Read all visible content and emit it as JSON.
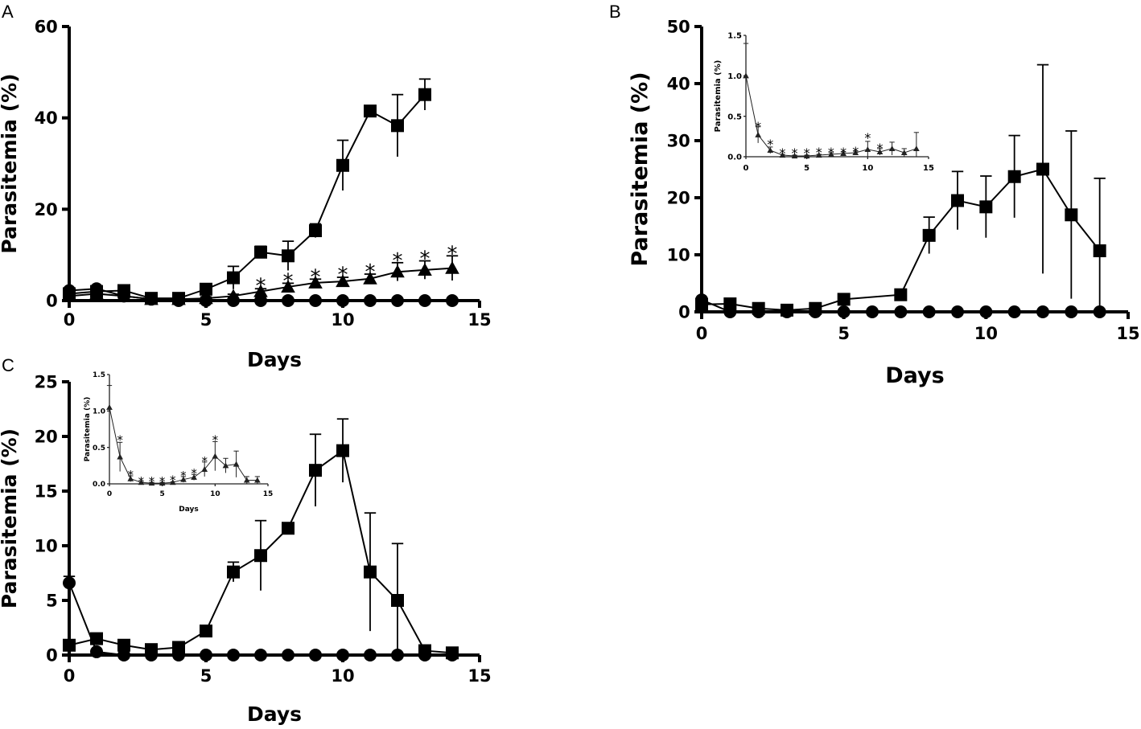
{
  "colors": {
    "ink": "#000000",
    "inset_ink": "#222222",
    "background": "#ffffff"
  },
  "panel_letters": {
    "a": "A",
    "b": "B",
    "c": "C"
  },
  "chart_data": [
    {
      "id": "A",
      "type": "line",
      "title": "",
      "xlabel": "Days",
      "ylabel": "Parasitemia (%)",
      "xlim": [
        0,
        15
      ],
      "ylim": [
        0,
        60
      ],
      "xticks": [
        "0",
        "5",
        "10",
        "15"
      ],
      "yticks": [
        "0",
        "20",
        "40",
        "60"
      ],
      "series": [
        {
          "name": "square",
          "marker": "square",
          "x": [
            0,
            1,
            2,
            3,
            4,
            5,
            6,
            7,
            8,
            9,
            10,
            11,
            12,
            13
          ],
          "y": [
            1.5,
            2.0,
            2.2,
            0.5,
            0.5,
            2.5,
            5.0,
            10.6,
            9.8,
            15.3,
            29.6,
            41.5,
            38.3,
            45.1
          ],
          "err": [
            0.5,
            0.6,
            0.7,
            0.3,
            0.3,
            1.2,
            2.5,
            1.3,
            3.2,
            1.5,
            5.5,
            1.2,
            6.8,
            3.4
          ]
        },
        {
          "name": "triangle",
          "marker": "triangle",
          "x": [
            0,
            1,
            2,
            3,
            4,
            5,
            6,
            7,
            8,
            9,
            10,
            11,
            12,
            13,
            14
          ],
          "y": [
            1.0,
            1.5,
            1.0,
            0.3,
            0.3,
            0.5,
            1.0,
            2.0,
            3.0,
            3.9,
            4.2,
            4.8,
            6.3,
            6.7,
            7.1
          ],
          "err": [
            0.3,
            0.4,
            0.3,
            0.2,
            0.2,
            0.3,
            0.4,
            0.6,
            0.8,
            0.8,
            0.9,
            1.0,
            2.0,
            2.0,
            2.7
          ]
        },
        {
          "name": "circle",
          "marker": "circle",
          "x": [
            0,
            1,
            2,
            3,
            4,
            5,
            6,
            7,
            8,
            9,
            10,
            11,
            12,
            13,
            14
          ],
          "y": [
            2.2,
            2.6,
            1.0,
            0.3,
            0,
            0,
            0,
            0,
            0,
            0,
            0,
            0,
            0,
            0,
            0
          ],
          "err": [
            0,
            0,
            0,
            0,
            0,
            0,
            0,
            0,
            0,
            0,
            0,
            0,
            0,
            0,
            0
          ]
        }
      ],
      "annotations": [
        {
          "text": "*",
          "x": 7,
          "y": 3.7
        },
        {
          "text": "*",
          "x": 8,
          "y": 4.8
        },
        {
          "text": "*",
          "x": 9,
          "y": 5.7
        },
        {
          "text": "*",
          "x": 10,
          "y": 6.2
        },
        {
          "text": "*",
          "x": 11,
          "y": 6.8
        },
        {
          "text": "*",
          "x": 12,
          "y": 9.3
        },
        {
          "text": "*",
          "x": 13,
          "y": 9.7
        },
        {
          "text": "*",
          "x": 14,
          "y": 10.8
        }
      ],
      "inset": null
    },
    {
      "id": "B",
      "type": "line",
      "title": "",
      "xlabel": "Days",
      "ylabel": "Parasitemia (%)",
      "xlim": [
        0,
        15
      ],
      "ylim": [
        0,
        50
      ],
      "xticks": [
        "0",
        "5",
        "10",
        "15"
      ],
      "yticks": [
        "0",
        "10",
        "20",
        "30",
        "40",
        "50"
      ],
      "series": [
        {
          "name": "square",
          "marker": "square",
          "x": [
            0,
            1,
            2,
            3,
            4,
            5,
            7,
            8,
            9,
            10,
            11,
            12,
            13,
            14
          ],
          "y": [
            1.3,
            1.4,
            0.6,
            0.3,
            0.6,
            2.2,
            3.0,
            13.4,
            19.5,
            18.4,
            23.7,
            25.0,
            17.0,
            10.7
          ],
          "err": [
            0,
            0,
            0,
            0,
            0,
            0,
            0,
            3.2,
            5.1,
            5.4,
            7.2,
            18.3,
            14.7,
            12.7
          ]
        },
        {
          "name": "circle",
          "marker": "circle",
          "x": [
            0,
            1,
            2,
            3,
            4,
            5,
            6,
            7,
            8,
            9,
            10,
            11,
            12,
            13,
            14
          ],
          "y": [
            2.1,
            0,
            0,
            0,
            0,
            0,
            0,
            0,
            0,
            0,
            0,
            0,
            0,
            0,
            0
          ],
          "err": [
            0,
            0,
            0,
            0,
            0,
            0,
            0,
            0,
            0,
            0,
            0,
            0,
            0,
            0,
            0
          ]
        }
      ],
      "annotations": [],
      "inset": {
        "type": "line",
        "xlabel": "",
        "ylabel": "Parasitemia (%)",
        "xlim": [
          0,
          15
        ],
        "ylim": [
          0,
          1.5
        ],
        "xticks": [
          "0",
          "5",
          "10",
          "15"
        ],
        "yticks": [
          "0.0",
          "0.5",
          "1.0",
          "1.5"
        ],
        "series": [
          {
            "name": "triangle",
            "marker": "triangle",
            "x": [
              0,
              1,
              2,
              3,
              4,
              5,
              6,
              7,
              8,
              9,
              10,
              11,
              12,
              13,
              14
            ],
            "y": [
              1.0,
              0.27,
              0.08,
              0.02,
              0.01,
              0.01,
              0.02,
              0.03,
              0.04,
              0.05,
              0.09,
              0.06,
              0.1,
              0.05,
              0.1
            ],
            "err": [
              0.4,
              0.1,
              0.04,
              0.01,
              0.01,
              0.01,
              0.01,
              0.02,
              0.02,
              0.02,
              0.1,
              0.04,
              0.08,
              0.05,
              0.2
            ]
          }
        ],
        "annotations": [
          {
            "text": "*",
            "x": 1,
            "y": 0.39
          },
          {
            "text": "*",
            "x": 2,
            "y": 0.17
          },
          {
            "text": "*",
            "x": 3,
            "y": 0.06
          },
          {
            "text": "*",
            "x": 4,
            "y": 0.06
          },
          {
            "text": "*",
            "x": 5,
            "y": 0.06
          },
          {
            "text": "*",
            "x": 6,
            "y": 0.07
          },
          {
            "text": "*",
            "x": 7,
            "y": 0.07
          },
          {
            "text": "*",
            "x": 8,
            "y": 0.07
          },
          {
            "text": "*",
            "x": 9,
            "y": 0.08
          },
          {
            "text": "*",
            "x": 10,
            "y": 0.25
          },
          {
            "text": "*",
            "x": 11,
            "y": 0.12
          }
        ]
      }
    },
    {
      "id": "C",
      "type": "line",
      "title": "",
      "xlabel": "Days",
      "ylabel": "Parasitemia (%)",
      "xlim": [
        0,
        15
      ],
      "ylim": [
        0,
        25
      ],
      "xticks": [
        "0",
        "5",
        "10",
        "15"
      ],
      "yticks": [
        "0",
        "5",
        "10",
        "15",
        "20",
        "25"
      ],
      "series": [
        {
          "name": "square",
          "marker": "square",
          "x": [
            0,
            1,
            2,
            3,
            4,
            5,
            6,
            7,
            8,
            9,
            10,
            11,
            12,
            13,
            14
          ],
          "y": [
            0.9,
            1.5,
            0.9,
            0.5,
            0.7,
            2.2,
            7.6,
            9.1,
            11.6,
            16.9,
            18.7,
            7.6,
            5.0,
            0.4,
            0.2
          ],
          "err": [
            0,
            0,
            0,
            0,
            0,
            0,
            0.9,
            3.2,
            0,
            3.3,
            2.9,
            5.4,
            5.2,
            0,
            0
          ]
        },
        {
          "name": "circle",
          "marker": "circle",
          "x": [
            0,
            1,
            2,
            3,
            4,
            5,
            6,
            7,
            8,
            9,
            10,
            11,
            12,
            13,
            14
          ],
          "y": [
            6.6,
            0.3,
            0,
            0,
            0,
            0,
            0,
            0,
            0,
            0,
            0,
            0,
            0,
            0,
            0
          ],
          "err": [
            0.6,
            0,
            0,
            0,
            0,
            0,
            0,
            0,
            0,
            0,
            0,
            0,
            0,
            0,
            0
          ]
        }
      ],
      "annotations": [],
      "inset": {
        "type": "line",
        "xlabel": "Days",
        "ylabel": "Parasitemia (%)",
        "xlim": [
          0,
          15
        ],
        "ylim": [
          0,
          1.5
        ],
        "xticks": [
          "0",
          "5",
          "10",
          "15"
        ],
        "yticks": [
          "0.0",
          "0.5",
          "1.0",
          "1.5"
        ],
        "series": [
          {
            "name": "triangle",
            "marker": "triangle",
            "x": [
              0,
              1,
              2,
              3,
              4,
              5,
              6,
              7,
              8,
              9,
              10,
              11,
              12,
              13,
              14
            ],
            "y": [
              1.05,
              0.37,
              0.07,
              0.02,
              0.01,
              0.01,
              0.02,
              0.06,
              0.09,
              0.2,
              0.38,
              0.25,
              0.27,
              0.05,
              0.05
            ],
            "err": [
              0.3,
              0.2,
              0.04,
              0.01,
              0.01,
              0.01,
              0.01,
              0.04,
              0.04,
              0.1,
              0.2,
              0.1,
              0.18,
              0.05,
              0.05
            ]
          }
        ],
        "annotations": [
          {
            "text": "*",
            "x": 1,
            "y": 0.62
          },
          {
            "text": "*",
            "x": 2,
            "y": 0.14
          },
          {
            "text": "*",
            "x": 3,
            "y": 0.05
          },
          {
            "text": "*",
            "x": 4,
            "y": 0.05
          },
          {
            "text": "*",
            "x": 5,
            "y": 0.05
          },
          {
            "text": "*",
            "x": 6,
            "y": 0.07
          },
          {
            "text": "*",
            "x": 7,
            "y": 0.13
          },
          {
            "text": "*",
            "x": 8,
            "y": 0.16
          },
          {
            "text": "*",
            "x": 9,
            "y": 0.33
          },
          {
            "text": "*",
            "x": 10,
            "y": 0.62
          }
        ]
      }
    }
  ]
}
